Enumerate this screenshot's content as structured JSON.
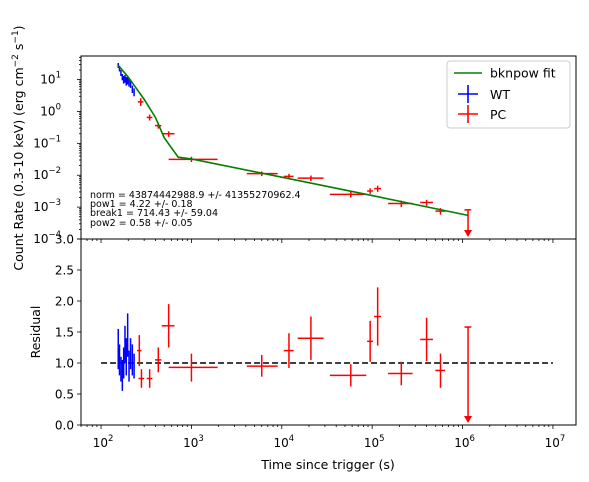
{
  "chart_data": [
    {
      "type": "scatter",
      "panel": "light-curve",
      "xscale": "log",
      "yscale": "log",
      "xlim": [
        60,
        18000000
      ],
      "ylim": [
        0.0001,
        55
      ],
      "ylabel": "Count Rate (0.3-10 keV) (erg cm$^{-2}$ s$^{-1}$)",
      "ylabel_parts": {
        "main": "Count Rate (0.3-10 keV) (erg cm",
        "sup1": "−2",
        "mid": " s",
        "sup2": "−1",
        "end": ")"
      },
      "ytick_labels": [
        {
          "v": 0.0001,
          "base": "10",
          "exp": "−4"
        },
        {
          "v": 0.001,
          "base": "10",
          "exp": "−3"
        },
        {
          "v": 0.01,
          "base": "10",
          "exp": "−2"
        },
        {
          "v": 0.1,
          "base": "10",
          "exp": "−1"
        },
        {
          "v": 1,
          "base": "10",
          "exp": "0"
        },
        {
          "v": 10,
          "base": "10",
          "exp": "1"
        }
      ],
      "legend": {
        "placement": "top-right",
        "items": [
          {
            "label": "bknpow fit",
            "kind": "line",
            "color": "#008000"
          },
          {
            "label": "WT",
            "kind": "cross",
            "color": "#0000ff"
          },
          {
            "label": "PC",
            "kind": "cross",
            "color": "#ff0000"
          }
        ]
      },
      "fit_label": "bknpow fit",
      "fit_curve": {
        "color": "#008000",
        "x": [
          155,
          200,
          300,
          400,
          500,
          714.43,
          1000,
          10000,
          100000,
          1150000
        ],
        "y": [
          28,
          12,
          2.4,
          0.65,
          0.15,
          0.0368,
          0.0325,
          0.0087,
          0.0023,
          0.00055
        ]
      },
      "annotations": [
        "norm = 43874442988.9 +/- 41355270962.4",
        "pow1 = 4.22 +/- 0.18",
        "break1 = 714.43 +/- 59.04",
        "pow2 = 0.58 +/- 0.05"
      ],
      "series": [
        {
          "name": "WT",
          "color": "#0000ff",
          "points": [
            {
              "x": 155,
              "y": 28,
              "xlo": 153,
              "xhi": 157,
              "ylo": 23,
              "yhi": 33
            },
            {
              "x": 160,
              "y": 22,
              "xlo": 158,
              "xhi": 162,
              "ylo": 18,
              "yhi": 27
            },
            {
              "x": 166,
              "y": 16,
              "xlo": 164,
              "xhi": 168,
              "ylo": 13,
              "yhi": 20
            },
            {
              "x": 172,
              "y": 12,
              "xlo": 170,
              "xhi": 174,
              "ylo": 9.5,
              "yhi": 15
            },
            {
              "x": 178,
              "y": 10,
              "xlo": 176,
              "xhi": 180,
              "ylo": 7.5,
              "yhi": 13
            },
            {
              "x": 184,
              "y": 11,
              "xlo": 182,
              "xhi": 186,
              "ylo": 8,
              "yhi": 14
            },
            {
              "x": 190,
              "y": 9,
              "xlo": 188,
              "xhi": 192,
              "ylo": 6.5,
              "yhi": 12
            },
            {
              "x": 197,
              "y": 10,
              "xlo": 195,
              "xhi": 199,
              "ylo": 7,
              "yhi": 13
            },
            {
              "x": 204,
              "y": 8,
              "xlo": 202,
              "xhi": 206,
              "ylo": 6,
              "yhi": 11
            },
            {
              "x": 212,
              "y": 7.5,
              "xlo": 209,
              "xhi": 215,
              "ylo": 5.5,
              "yhi": 10
            },
            {
              "x": 222,
              "y": 5,
              "xlo": 219,
              "xhi": 225,
              "ylo": 3.8,
              "yhi": 6.5
            },
            {
              "x": 232,
              "y": 4,
              "xlo": 229,
              "xhi": 235,
              "ylo": 3,
              "yhi": 5.3
            }
          ]
        },
        {
          "name": "PC",
          "color": "#ff0000",
          "points": [
            {
              "x": 275,
              "y": 2.0,
              "xlo": 255,
              "xhi": 295,
              "ylo": 1.5,
              "yhi": 2.6
            },
            {
              "x": 345,
              "y": 0.65,
              "xlo": 320,
              "xhi": 370,
              "ylo": 0.52,
              "yhi": 0.8
            },
            {
              "x": 430,
              "y": 0.36,
              "xlo": 395,
              "xhi": 465,
              "ylo": 0.29,
              "yhi": 0.44
            },
            {
              "x": 560,
              "y": 0.2,
              "xlo": 470,
              "xhi": 650,
              "ylo": 0.16,
              "yhi": 0.24
            },
            {
              "x": 1000,
              "y": 0.0315,
              "xlo": 560,
              "xhi": 1950,
              "ylo": 0.026,
              "yhi": 0.038
            },
            {
              "x": 6000,
              "y": 0.0112,
              "xlo": 4100,
              "xhi": 9000,
              "ylo": 0.0094,
              "yhi": 0.0132
            },
            {
              "x": 12000,
              "y": 0.0092,
              "xlo": 10500,
              "xhi": 13500,
              "ylo": 0.0076,
              "yhi": 0.011
            },
            {
              "x": 21000,
              "y": 0.0081,
              "xlo": 15000,
              "xhi": 29000,
              "ylo": 0.0066,
              "yhi": 0.0098
            },
            {
              "x": 58000,
              "y": 0.0025,
              "xlo": 34000,
              "xhi": 86000,
              "ylo": 0.002,
              "yhi": 0.0031
            },
            {
              "x": 95000,
              "y": 0.0032,
              "xlo": 88000,
              "xhi": 102000,
              "ylo": 0.0026,
              "yhi": 0.0039
            },
            {
              "x": 115000,
              "y": 0.0038,
              "xlo": 105000,
              "xhi": 125000,
              "ylo": 0.003,
              "yhi": 0.0047
            },
            {
              "x": 210000,
              "y": 0.0013,
              "xlo": 150000,
              "xhi": 280000,
              "ylo": 0.001,
              "yhi": 0.0016
            },
            {
              "x": 400000,
              "y": 0.0014,
              "xlo": 340000,
              "xhi": 470000,
              "ylo": 0.0011,
              "yhi": 0.0017
            },
            {
              "x": 570000,
              "y": 0.00075,
              "xlo": 500000,
              "xhi": 640000,
              "ylo": 0.00058,
              "yhi": 0.00093
            },
            {
              "x": 1150000,
              "y": 0.00082,
              "xlo": 1050000,
              "xhi": 1250000,
              "upper_limit": true
            }
          ]
        }
      ]
    },
    {
      "type": "scatter",
      "panel": "residual",
      "xscale": "log",
      "yscale": "linear",
      "xlim": [
        60,
        18000000
      ],
      "ylim": [
        0,
        3.0
      ],
      "xlabel": "Time since trigger (s)",
      "ylabel": "Residual",
      "ytick_labels": [
        "0.0",
        "0.5",
        "1.0",
        "1.5",
        "2.0",
        "2.5",
        "3.0"
      ],
      "ytick_values": [
        0,
        0.5,
        1.0,
        1.5,
        2.0,
        2.5,
        3.0
      ],
      "xtick_labels": [
        {
          "v": 100,
          "base": "10",
          "exp": "2"
        },
        {
          "v": 1000,
          "base": "10",
          "exp": "3"
        },
        {
          "v": 10000,
          "base": "10",
          "exp": "4"
        },
        {
          "v": 100000,
          "base": "10",
          "exp": "5"
        },
        {
          "v": 1000000,
          "base": "10",
          "exp": "6"
        },
        {
          "v": 10000000,
          "base": "10",
          "exp": "7"
        }
      ],
      "reference_line": {
        "y": 1.0,
        "x_from": 100,
        "x_to": 10000000,
        "style": "dashed",
        "color": "#000000"
      },
      "series": [
        {
          "name": "WT",
          "color": "#0000ff",
          "points": [
            {
              "x": 155,
              "y": 1.2,
              "xlo": 153,
              "xhi": 157,
              "ylo": 0.9,
              "yhi": 1.55
            },
            {
              "x": 160,
              "y": 1.05,
              "xlo": 158,
              "xhi": 162,
              "ylo": 0.8,
              "yhi": 1.3
            },
            {
              "x": 166,
              "y": 0.9,
              "xlo": 164,
              "xhi": 168,
              "ylo": 0.7,
              "yhi": 1.1
            },
            {
              "x": 172,
              "y": 0.8,
              "xlo": 170,
              "xhi": 174,
              "ylo": 0.55,
              "yhi": 1.05
            },
            {
              "x": 178,
              "y": 1.0,
              "xlo": 176,
              "xhi": 180,
              "ylo": 0.75,
              "yhi": 1.25
            },
            {
              "x": 184,
              "y": 1.3,
              "xlo": 182,
              "xhi": 186,
              "ylo": 1.0,
              "yhi": 1.6
            },
            {
              "x": 190,
              "y": 1.1,
              "xlo": 188,
              "xhi": 192,
              "ylo": 0.8,
              "yhi": 1.4
            },
            {
              "x": 197,
              "y": 1.45,
              "xlo": 195,
              "xhi": 199,
              "ylo": 1.1,
              "yhi": 1.8
            },
            {
              "x": 204,
              "y": 0.95,
              "xlo": 202,
              "xhi": 206,
              "ylo": 0.7,
              "yhi": 1.2
            },
            {
              "x": 212,
              "y": 1.15,
              "xlo": 209,
              "xhi": 215,
              "ylo": 0.9,
              "yhi": 1.4
            },
            {
              "x": 222,
              "y": 1.05,
              "xlo": 219,
              "xhi": 225,
              "ylo": 0.8,
              "yhi": 1.3
            },
            {
              "x": 232,
              "y": 0.95,
              "xlo": 229,
              "xhi": 235,
              "ylo": 0.75,
              "yhi": 1.15
            }
          ]
        },
        {
          "name": "PC",
          "color": "#ff0000",
          "points": [
            {
              "x": 265,
              "y": 1.2,
              "xlo": 250,
              "xhi": 280,
              "ylo": 0.95,
              "yhi": 1.45
            },
            {
              "x": 280,
              "y": 0.75,
              "xlo": 260,
              "xhi": 300,
              "ylo": 0.6,
              "yhi": 0.9
            },
            {
              "x": 345,
              "y": 0.75,
              "xlo": 320,
              "xhi": 370,
              "ylo": 0.6,
              "yhi": 0.9
            },
            {
              "x": 430,
              "y": 1.05,
              "xlo": 395,
              "xhi": 465,
              "ylo": 0.85,
              "yhi": 1.25
            },
            {
              "x": 560,
              "y": 1.6,
              "xlo": 470,
              "xhi": 650,
              "ylo": 1.25,
              "yhi": 1.95
            },
            {
              "x": 1000,
              "y": 0.93,
              "xlo": 560,
              "xhi": 1950,
              "ylo": 0.7,
              "yhi": 1.15
            },
            {
              "x": 6000,
              "y": 0.95,
              "xlo": 4100,
              "xhi": 9000,
              "ylo": 0.78,
              "yhi": 1.13
            },
            {
              "x": 12000,
              "y": 1.2,
              "xlo": 10500,
              "xhi": 13500,
              "ylo": 0.92,
              "yhi": 1.48
            },
            {
              "x": 21000,
              "y": 1.4,
              "xlo": 15000,
              "xhi": 29000,
              "ylo": 1.05,
              "yhi": 1.75
            },
            {
              "x": 58000,
              "y": 0.8,
              "xlo": 34000,
              "xhi": 86000,
              "ylo": 0.62,
              "yhi": 0.98
            },
            {
              "x": 95000,
              "y": 1.35,
              "xlo": 88000,
              "xhi": 102000,
              "ylo": 1.02,
              "yhi": 1.68
            },
            {
              "x": 115000,
              "y": 1.75,
              "xlo": 105000,
              "xhi": 125000,
              "ylo": 1.28,
              "yhi": 2.22
            },
            {
              "x": 210000,
              "y": 0.83,
              "xlo": 150000,
              "xhi": 280000,
              "ylo": 0.64,
              "yhi": 1.02
            },
            {
              "x": 400000,
              "y": 1.38,
              "xlo": 340000,
              "xhi": 470000,
              "ylo": 1.03,
              "yhi": 1.73
            },
            {
              "x": 570000,
              "y": 0.88,
              "xlo": 500000,
              "xhi": 640000,
              "ylo": 0.6,
              "yhi": 1.15
            },
            {
              "x": 1150000,
              "y": 1.58,
              "xlo": 1050000,
              "xhi": 1250000,
              "upper_limit": true
            }
          ]
        }
      ]
    }
  ]
}
